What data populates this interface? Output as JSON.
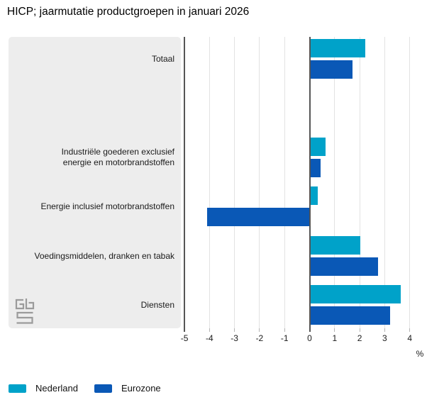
{
  "title": "HICP; jaarmutatie productgroepen in januari 2026",
  "colors": {
    "nederland": "#00a2c9",
    "eurozone": "#0a58b6",
    "panel": "#ededed",
    "grid": "#e2e2e2",
    "axis": "#565656"
  },
  "chart_data": {
    "type": "bar",
    "orientation": "horizontal",
    "title": "HICP; jaarmutatie productgroepen in januari 2026",
    "categories": [
      "Totaal",
      "Industriële goederen exclusief energie en motorbrandstoffen",
      "Energie inclusief motorbrandstoffen",
      "Voedingsmiddelen, dranken en tabak",
      "Diensten"
    ],
    "series": [
      {
        "name": "Nederland",
        "color": "#00a2c9",
        "values": [
          2.2,
          0.6,
          0.3,
          2.0,
          3.6
        ]
      },
      {
        "name": "Eurozone",
        "color": "#0a58b6",
        "values": [
          1.7,
          0.4,
          -4.1,
          2.7,
          3.2
        ]
      }
    ],
    "xlabel": "%",
    "xlim": [
      -5,
      4
    ],
    "xticks": [
      -5,
      -4,
      -3,
      -2,
      -1,
      0,
      1,
      2,
      3,
      4
    ],
    "grid": true,
    "legend_position": "bottom"
  },
  "logo": {
    "name": "cbs-logo"
  }
}
